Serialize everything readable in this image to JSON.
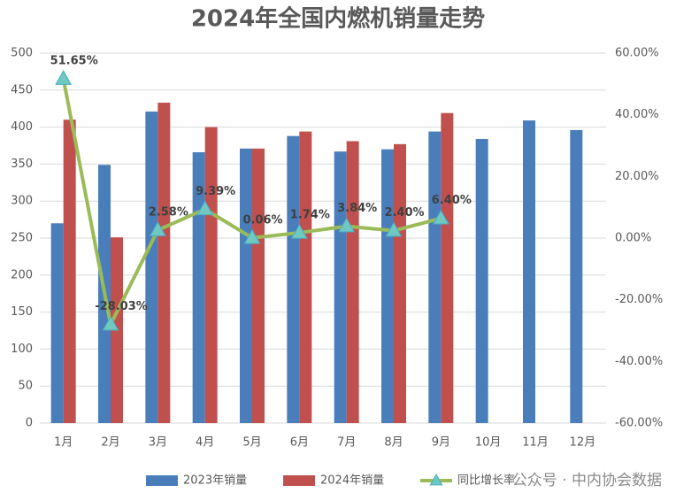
{
  "chart_data": {
    "type": "bar-line",
    "title": "2024年全国内燃机销量走势",
    "categories": [
      "1月",
      "2月",
      "3月",
      "4月",
      "5月",
      "6月",
      "7月",
      "8月",
      "9月",
      "10月",
      "11月",
      "12月"
    ],
    "series": [
      {
        "name": "2023年销量",
        "color": "#4a7ebb",
        "type": "bar",
        "values": [
          270,
          349,
          421,
          366,
          371,
          388,
          367,
          370,
          394,
          384,
          409,
          396
        ]
      },
      {
        "name": "2024年销量",
        "color": "#c0504d",
        "type": "bar",
        "values": [
          410,
          251,
          433,
          400,
          371,
          394,
          381,
          377,
          419,
          null,
          null,
          null
        ]
      },
      {
        "name": "同比增长率",
        "color": "#9bbb59",
        "marker_color": "#6fc9c0",
        "type": "line",
        "axis": "y2",
        "values": [
          51.65,
          -28.03,
          2.58,
          9.39,
          0.06,
          1.74,
          3.84,
          2.4,
          6.4,
          null,
          null,
          null
        ],
        "value_labels": [
          "51.65%",
          "-28.03%",
          "2.58%",
          "9.39%",
          "0.06%",
          "1.74%",
          "3.84%",
          "2.40%",
          "6.40%",
          null,
          null,
          null
        ]
      }
    ],
    "ylim": [
      0,
      500
    ],
    "yticks": [
      0,
      50,
      100,
      150,
      200,
      250,
      300,
      350,
      400,
      450,
      500
    ],
    "y2lim": [
      -60,
      60
    ],
    "y2ticks": [
      {
        "value": -60,
        "label": "-60.00%"
      },
      {
        "value": -40,
        "label": "-40.00%"
      },
      {
        "value": -20,
        "label": "-20.00%"
      },
      {
        "value": 0,
        "label": "0.00%"
      },
      {
        "value": 20,
        "label": "20.00%"
      },
      {
        "value": 40,
        "label": "40.00%"
      },
      {
        "value": 60,
        "label": "60.00%"
      }
    ],
    "grid": true,
    "watermark": "公众号 · 中内协会数据"
  }
}
